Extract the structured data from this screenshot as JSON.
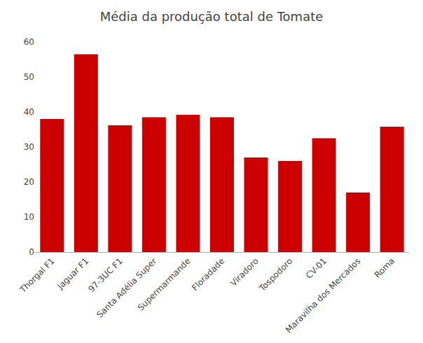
{
  "chart_data": {
    "type": "bar",
    "title": "Média da produção total de Tomate",
    "categories": [
      "Thorgal F1",
      "Jaguar F1",
      "97-3UC F1",
      "Santa Adélia Super",
      "Supermarmande",
      "Floradade",
      "Viradoro",
      "Tospodoro",
      "CV-01",
      "Maravilha dos Mercados",
      "Roma"
    ],
    "values": [
      38.0,
      56.5,
      36.2,
      38.5,
      39.2,
      38.5,
      27.0,
      26.0,
      32.5,
      17.0,
      35.8
    ],
    "color": "#cc0000",
    "ylim": [
      0,
      60
    ],
    "yticks": [
      0,
      10,
      20,
      30,
      40,
      50,
      60
    ],
    "grid": false
  }
}
